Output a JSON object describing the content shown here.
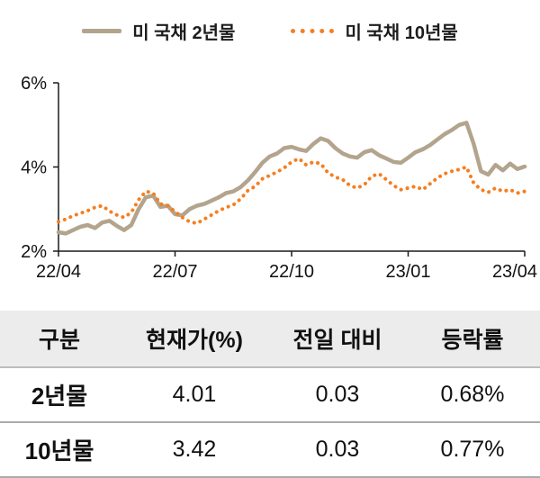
{
  "chart_data": {
    "type": "line",
    "title": "",
    "xlabel": "",
    "ylabel": "",
    "grid": false,
    "legend_position": "top",
    "x_axis": {
      "labels": [
        "22/04",
        "22/07",
        "22/10",
        "23/01",
        "23/04"
      ],
      "positions": [
        0,
        0.25,
        0.5,
        0.75,
        1
      ]
    },
    "y_axis": {
      "ticks": [
        "2%",
        "4%",
        "6%"
      ],
      "tick_values": [
        2,
        4,
        6
      ],
      "range": [
        2,
        6
      ],
      "unit": "%"
    },
    "series": [
      {
        "name": "미 국채 2년물",
        "style": "solid",
        "color": "#b3a48d",
        "values": [
          2.45,
          2.42,
          2.5,
          2.58,
          2.62,
          2.55,
          2.68,
          2.72,
          2.6,
          2.5,
          2.62,
          3.0,
          3.28,
          3.32,
          3.05,
          3.08,
          2.88,
          2.85,
          3.0,
          3.08,
          3.12,
          3.2,
          3.28,
          3.38,
          3.42,
          3.52,
          3.68,
          3.88,
          4.1,
          4.25,
          4.32,
          4.45,
          4.48,
          4.42,
          4.38,
          4.55,
          4.68,
          4.62,
          4.45,
          4.32,
          4.25,
          4.22,
          4.35,
          4.4,
          4.28,
          4.2,
          4.12,
          4.1,
          4.22,
          4.35,
          4.42,
          4.52,
          4.65,
          4.78,
          4.88,
          5.0,
          5.05,
          4.55,
          3.9,
          3.82,
          4.05,
          3.92,
          4.08,
          3.95,
          4.01
        ]
      },
      {
        "name": "미 국채 10년물",
        "style": "dotted",
        "color": "#f57e20",
        "values": [
          2.7,
          2.76,
          2.84,
          2.9,
          2.96,
          3.04,
          3.08,
          2.95,
          2.86,
          2.8,
          2.92,
          3.22,
          3.42,
          3.38,
          3.12,
          3.08,
          2.94,
          2.8,
          2.7,
          2.66,
          2.76,
          2.86,
          2.96,
          3.04,
          3.1,
          3.24,
          3.44,
          3.54,
          3.72,
          3.8,
          3.88,
          3.98,
          4.12,
          4.2,
          4.05,
          4.12,
          4.08,
          3.86,
          3.76,
          3.7,
          3.56,
          3.5,
          3.58,
          3.78,
          3.84,
          3.7,
          3.56,
          3.46,
          3.5,
          3.54,
          3.46,
          3.6,
          3.74,
          3.84,
          3.9,
          3.94,
          4.0,
          3.62,
          3.46,
          3.4,
          3.5,
          3.42,
          3.46,
          3.38,
          3.42
        ]
      }
    ]
  },
  "table": {
    "headers": [
      "구분",
      "현재가(%)",
      "전일 대비",
      "등락률"
    ],
    "rows": [
      [
        "2년물",
        "4.01",
        "0.03",
        "0.68%"
      ],
      [
        "10년물",
        "3.42",
        "0.03",
        "0.77%"
      ]
    ]
  }
}
